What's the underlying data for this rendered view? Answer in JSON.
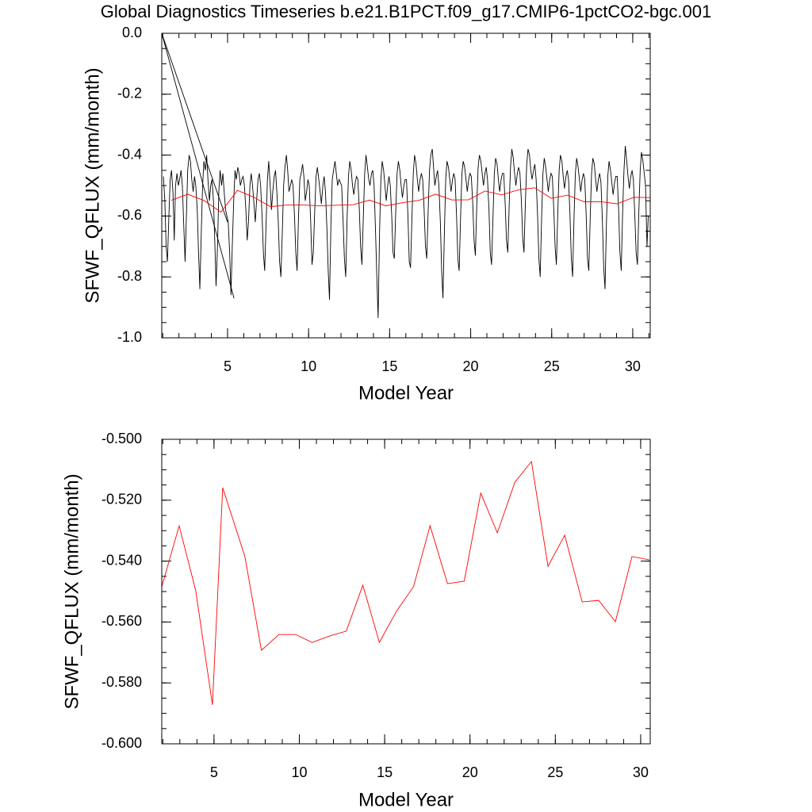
{
  "chart_data": [
    {
      "type": "line",
      "title": "Global Diagnostics Timeseries b.e21.B1PCT.f09_g17.CMIP6-1pctCO2-bgc.001",
      "x_label": "Model Year",
      "y_label": "SFWF_QFLUX (mm/month)",
      "xlim": [
        0.94,
        31.08
      ],
      "xticks": [
        5,
        10,
        15,
        20,
        25,
        30
      ],
      "ylim": [
        -1.0,
        0.0
      ],
      "yticks": [
        {
          "value": -1.0,
          "label": "-1.0"
        },
        -0.8,
        -0.6,
        -0.4,
        -0.2,
        {
          "value": 0.0,
          "label": "0.0"
        }
      ],
      "series": [
        {
          "color": "#000000",
          "x": [
            5.4,
            0.94,
            5.0
          ],
          "values": [
            -0.87,
            0,
            -0.62
          ]
        },
        {
          "color": "#000000",
          "x": [
            1.04,
            1.13,
            1.21,
            1.29,
            1.38,
            1.46,
            1.54,
            1.63,
            1.71,
            1.79,
            1.88,
            1.96,
            2.04,
            2.13,
            2.21,
            2.29,
            2.38,
            2.46,
            2.54,
            2.63,
            2.71,
            2.79,
            2.88,
            2.96,
            3.04,
            3.13,
            3.21,
            3.29,
            3.38,
            3.46,
            3.54,
            3.63,
            3.71,
            3.79,
            3.88,
            3.96,
            4.04,
            4.13,
            4.21,
            4.29,
            4.38,
            4.46,
            4.54,
            4.63,
            4.71,
            4.79,
            4.88,
            4.96,
            5.04,
            5.13,
            5.21,
            5.29,
            5.38,
            5.46,
            5.54,
            5.63,
            5.71,
            5.79,
            5.88,
            5.96,
            6.04,
            6.13,
            6.21,
            6.29,
            6.38,
            6.46,
            6.54,
            6.63,
            6.71,
            6.79,
            6.88,
            6.96,
            7.04,
            7.13,
            7.21,
            7.29,
            7.38,
            7.46,
            7.54,
            7.63,
            7.71,
            7.79,
            7.88,
            7.96,
            8.04,
            8.13,
            8.21,
            8.29,
            8.38,
            8.46,
            8.54,
            8.63,
            8.71,
            8.79,
            8.88,
            8.96,
            9.04,
            9.13,
            9.21,
            9.29,
            9.38,
            9.46,
            9.54,
            9.63,
            9.71,
            9.79,
            9.88,
            9.96,
            10.04,
            10.13,
            10.21,
            10.29,
            10.38,
            10.46,
            10.54,
            10.63,
            10.71,
            10.79,
            10.88,
            10.96,
            11.04,
            11.13,
            11.21,
            11.29,
            11.38,
            11.46,
            11.54,
            11.63,
            11.71,
            11.79,
            11.88,
            11.96,
            12.04,
            12.13,
            12.21,
            12.29,
            12.38,
            12.46,
            12.54,
            12.63,
            12.71,
            12.79,
            12.88,
            12.96,
            13.04,
            13.13,
            13.21,
            13.29,
            13.38,
            13.46,
            13.54,
            13.63,
            13.71,
            13.79,
            13.88,
            13.96,
            14.04,
            14.13,
            14.21,
            14.29,
            14.38,
            14.46,
            14.54,
            14.63,
            14.71,
            14.79,
            14.88,
            14.96,
            15.04,
            15.13,
            15.21,
            15.29,
            15.38,
            15.46,
            15.54,
            15.63,
            15.71,
            15.79,
            15.88,
            15.96,
            16.04,
            16.13,
            16.21,
            16.29,
            16.38,
            16.46,
            16.54,
            16.63,
            16.71,
            16.79,
            16.88,
            16.96,
            17.04,
            17.13,
            17.21,
            17.29,
            17.38,
            17.46,
            17.54,
            17.63,
            17.71,
            17.79,
            17.88,
            17.96,
            18.04,
            18.13,
            18.21,
            18.29,
            18.38,
            18.46,
            18.54,
            18.63,
            18.71,
            18.79,
            18.88,
            18.96,
            19.04,
            19.13,
            19.21,
            19.29,
            19.38,
            19.46,
            19.54,
            19.63,
            19.71,
            19.79,
            19.88,
            19.96,
            20.04,
            20.13,
            20.21,
            20.29,
            20.38,
            20.46,
            20.54,
            20.63,
            20.71,
            20.79,
            20.88,
            20.96,
            21.04,
            21.13,
            21.21,
            21.29,
            21.38,
            21.46,
            21.54,
            21.63,
            21.71,
            21.79,
            21.88,
            21.96,
            22.04,
            22.13,
            22.21,
            22.29,
            22.38,
            22.46,
            22.54,
            22.63,
            22.71,
            22.79,
            22.88,
            22.96,
            23.04,
            23.13,
            23.21,
            23.29,
            23.38,
            23.46,
            23.54,
            23.63,
            23.71,
            23.79,
            23.88,
            23.96,
            24.04,
            24.13,
            24.21,
            24.29,
            24.38,
            24.46,
            24.54,
            24.63,
            24.71,
            24.79,
            24.88,
            24.96,
            25.04,
            25.13,
            25.21,
            25.29,
            25.38,
            25.46,
            25.54,
            25.63,
            25.71,
            25.79,
            25.88,
            25.96,
            26.04,
            26.13,
            26.21,
            26.29,
            26.38,
            26.46,
            26.54,
            26.63,
            26.71,
            26.79,
            26.88,
            26.96,
            27.04,
            27.13,
            27.21,
            27.29,
            27.38,
            27.46,
            27.54,
            27.63,
            27.71,
            27.79,
            27.88,
            27.96,
            28.04,
            28.13,
            28.21,
            28.29,
            28.38,
            28.46,
            28.54,
            28.63,
            28.71,
            28.79,
            28.88,
            28.96,
            29.04,
            29.13,
            29.21,
            29.29,
            29.38,
            29.46,
            29.54,
            29.63,
            29.71,
            29.79,
            29.88,
            29.96,
            30.04,
            30.13,
            30.21,
            30.29,
            30.38,
            30.46,
            30.54,
            30.63,
            30.71,
            30.79,
            30.88,
            30.96
          ],
          "values": [
            -0.47,
            -0.55,
            -0.7,
            -0.75,
            -0.6,
            -0.48,
            -0.45,
            -0.52,
            -0.68,
            -0.5,
            -0.46,
            -0.5,
            -0.48,
            -0.45,
            -0.5,
            -0.62,
            -0.75,
            -0.6,
            -0.45,
            -0.4,
            -0.42,
            -0.48,
            -0.52,
            -0.47,
            -0.5,
            -0.58,
            -0.72,
            -0.84,
            -0.65,
            -0.5,
            -0.42,
            -0.45,
            -0.4,
            -0.48,
            -0.55,
            -0.5,
            -0.48,
            -0.55,
            -0.68,
            -0.83,
            -0.7,
            -0.52,
            -0.45,
            -0.5,
            -0.46,
            -0.52,
            -0.58,
            -0.6,
            -0.62,
            -0.72,
            -0.86,
            -0.7,
            -0.55,
            -0.45,
            -0.48,
            -0.44,
            -0.46,
            -0.5,
            -0.48,
            -0.47,
            -0.5,
            -0.58,
            -0.68,
            -0.62,
            -0.5,
            -0.46,
            -0.5,
            -0.56,
            -0.62,
            -0.55,
            -0.48,
            -0.46,
            -0.5,
            -0.6,
            -0.72,
            -0.78,
            -0.62,
            -0.48,
            -0.42,
            -0.5,
            -0.58,
            -0.52,
            -0.47,
            -0.45,
            -0.52,
            -0.62,
            -0.75,
            -0.8,
            -0.65,
            -0.5,
            -0.44,
            -0.4,
            -0.45,
            -0.52,
            -0.5,
            -0.48,
            -0.5,
            -0.6,
            -0.72,
            -0.78,
            -0.6,
            -0.48,
            -0.46,
            -0.43,
            -0.47,
            -0.55,
            -0.52,
            -0.48,
            -0.5,
            -0.62,
            -0.76,
            -0.72,
            -0.58,
            -0.47,
            -0.44,
            -0.48,
            -0.52,
            -0.56,
            -0.5,
            -0.47,
            -0.52,
            -0.64,
            -0.78,
            -0.875,
            -0.62,
            -0.48,
            -0.45,
            -0.42,
            -0.46,
            -0.5,
            -0.48,
            -0.49,
            -0.5,
            -0.62,
            -0.74,
            -0.8,
            -0.6,
            -0.47,
            -0.42,
            -0.45,
            -0.5,
            -0.53,
            -0.49,
            -0.47,
            -0.48,
            -0.58,
            -0.7,
            -0.76,
            -0.6,
            -0.46,
            -0.4,
            -0.44,
            -0.48,
            -0.5,
            -0.46,
            -0.45,
            -0.5,
            -0.65,
            -0.8,
            -0.935,
            -0.65,
            -0.48,
            -0.42,
            -0.45,
            -0.5,
            -0.55,
            -0.5,
            -0.47,
            -0.5,
            -0.6,
            -0.72,
            -0.74,
            -0.58,
            -0.46,
            -0.42,
            -0.45,
            -0.5,
            -0.54,
            -0.5,
            -0.48,
            -0.48,
            -0.6,
            -0.75,
            -0.77,
            -0.6,
            -0.46,
            -0.4,
            -0.43,
            -0.48,
            -0.52,
            -0.48,
            -0.46,
            -0.48,
            -0.58,
            -0.7,
            -0.74,
            -0.58,
            -0.45,
            -0.4,
            -0.38,
            -0.44,
            -0.5,
            -0.47,
            -0.45,
            -0.5,
            -0.62,
            -0.78,
            -0.87,
            -0.65,
            -0.48,
            -0.42,
            -0.44,
            -0.48,
            -0.52,
            -0.48,
            -0.46,
            -0.48,
            -0.6,
            -0.74,
            -0.78,
            -0.6,
            -0.46,
            -0.42,
            -0.44,
            -0.48,
            -0.52,
            -0.48,
            -0.46,
            -0.47,
            -0.56,
            -0.68,
            -0.73,
            -0.56,
            -0.44,
            -0.4,
            -0.42,
            -0.46,
            -0.5,
            -0.46,
            -0.44,
            -0.48,
            -0.58,
            -0.72,
            -0.76,
            -0.6,
            -0.46,
            -0.41,
            -0.43,
            -0.48,
            -0.52,
            -0.48,
            -0.46,
            -0.46,
            -0.56,
            -0.68,
            -0.72,
            -0.56,
            -0.44,
            -0.38,
            -0.41,
            -0.46,
            -0.5,
            -0.46,
            -0.44,
            -0.46,
            -0.55,
            -0.67,
            -0.72,
            -0.55,
            -0.43,
            -0.38,
            -0.4,
            -0.45,
            -0.48,
            -0.45,
            -0.43,
            -0.48,
            -0.6,
            -0.74,
            -0.8,
            -0.6,
            -0.46,
            -0.41,
            -0.44,
            -0.48,
            -0.52,
            -0.48,
            -0.46,
            -0.47,
            -0.58,
            -0.7,
            -0.76,
            -0.58,
            -0.45,
            -0.4,
            -0.42,
            -0.47,
            -0.51,
            -0.47,
            -0.45,
            -0.48,
            -0.6,
            -0.74,
            -0.8,
            -0.6,
            -0.46,
            -0.41,
            -0.44,
            -0.48,
            -0.52,
            -0.48,
            -0.46,
            -0.48,
            -0.6,
            -0.74,
            -0.78,
            -0.6,
            -0.46,
            -0.41,
            -0.43,
            -0.48,
            -0.52,
            -0.48,
            -0.46,
            -0.49,
            -0.62,
            -0.77,
            -0.84,
            -0.62,
            -0.47,
            -0.42,
            -0.45,
            -0.49,
            -0.53,
            -0.49,
            -0.47,
            -0.47,
            -0.58,
            -0.72,
            -0.78,
            -0.58,
            -0.45,
            -0.37,
            -0.42,
            -0.47,
            -0.51,
            -0.47,
            -0.45,
            -0.48,
            -0.6,
            -0.72,
            -0.76,
            -0.58,
            -0.45,
            -0.39,
            -0.42,
            -0.46,
            -0.5,
            -0.7,
            -0.6
          ]
        },
        {
          "color": "#ff0000",
          "x": [
            1.53,
            2.55,
            3.57,
            4.59,
            5.61,
            6.63,
            7.65,
            8.66,
            9.68,
            10.7,
            11.72,
            12.74,
            13.76,
            14.78,
            15.8,
            16.82,
            17.84,
            18.85,
            19.87,
            20.89,
            21.91,
            22.93,
            23.95,
            24.97,
            25.99,
            27.01,
            28.02,
            29.04,
            30.06,
            31.08
          ],
          "values": [
            -0.5484,
            -0.5284,
            -0.5497,
            -0.5872,
            -0.5159,
            -0.5385,
            -0.5693,
            -0.5641,
            -0.5641,
            -0.5667,
            -0.5646,
            -0.563,
            -0.5479,
            -0.5667,
            -0.5563,
            -0.5484,
            -0.5284,
            -0.5474,
            -0.5466,
            -0.5177,
            -0.5307,
            -0.5141,
            -0.5073,
            -0.5417,
            -0.5315,
            -0.5534,
            -0.5529,
            -0.5599,
            -0.5385,
            -0.5396
          ]
        }
      ]
    },
    {
      "type": "line",
      "x_label": "Model Year",
      "y_label": "SFWF_QFLUX (mm/month)",
      "xlim": [
        1.94,
        30.56
      ],
      "xticks": [
        5,
        10,
        15,
        20,
        25,
        30
      ],
      "ylim": [
        -0.6,
        -0.5
      ],
      "yticks": [
        {
          "value": -0.6,
          "label": "-0.600"
        },
        {
          "value": -0.58,
          "label": "-0.580"
        },
        {
          "value": -0.56,
          "label": "-0.560"
        },
        {
          "value": -0.54,
          "label": "-0.540"
        },
        {
          "value": -0.52,
          "label": "-0.520"
        },
        {
          "value": -0.5,
          "label": "-0.500"
        }
      ],
      "series": [
        {
          "color": "#ff0000",
          "x": [
            1.94,
            2.96,
            3.93,
            4.91,
            5.51,
            6.81,
            7.78,
            8.8,
            9.78,
            10.75,
            11.77,
            12.75,
            13.72,
            14.69,
            15.71,
            16.69,
            17.66,
            18.68,
            19.66,
            20.63,
            21.6,
            22.63,
            23.6,
            24.57,
            25.55,
            26.57,
            27.54,
            28.52,
            29.49,
            30.51
          ],
          "values": [
            -0.5484,
            -0.5284,
            -0.5497,
            -0.5872,
            -0.5159,
            -0.5385,
            -0.5693,
            -0.5641,
            -0.5641,
            -0.5667,
            -0.5646,
            -0.563,
            -0.5479,
            -0.5667,
            -0.5563,
            -0.5484,
            -0.5284,
            -0.5474,
            -0.5466,
            -0.5177,
            -0.5307,
            -0.5141,
            -0.5073,
            -0.5417,
            -0.5315,
            -0.5534,
            -0.5529,
            -0.5599,
            -0.5385,
            -0.5396
          ]
        }
      ]
    }
  ]
}
